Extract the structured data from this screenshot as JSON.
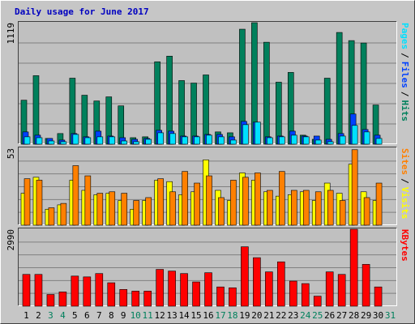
{
  "chart_data": [
    {
      "type": "bar",
      "title": "Daily usage for June 2017",
      "title_color": "#0000c0",
      "ylim": [
        0,
        1119
      ],
      "yticks": [
        1119
      ],
      "grid_lines": 6,
      "legend_separator": "/",
      "series": [
        {
          "name": "Hits",
          "color": "#00805c",
          "values": [
            405,
            631,
            53,
            98,
            608,
            451,
            398,
            436,
            353,
            60,
            68,
            759,
            811,
            586,
            563,
            638,
            113,
            105,
            1059,
            1119,
            939,
            571,
            661,
            83,
            45,
            608,
            1029,
            954,
            932,
            361,
            0
          ]
        },
        {
          "name": "Files",
          "color": "#0040ff",
          "values": [
            113,
            83,
            53,
            38,
            98,
            68,
            120,
            75,
            60,
            45,
            53,
            128,
            120,
            75,
            75,
            90,
            90,
            68,
            210,
            203,
            68,
            75,
            120,
            75,
            75,
            45,
            98,
            278,
            135,
            83,
            0
          ]
        },
        {
          "name": "Pages",
          "color": "#00e0ff",
          "values": [
            68,
            60,
            30,
            23,
            90,
            60,
            68,
            68,
            30,
            23,
            45,
            105,
            98,
            68,
            68,
            83,
            68,
            38,
            180,
            203,
            60,
            68,
            83,
            68,
            38,
            23,
            75,
            173,
            113,
            53,
            0
          ]
        }
      ]
    },
    {
      "type": "bar",
      "ylim": [
        0,
        53
      ],
      "yticks": [
        53
      ],
      "grid_lines": 6,
      "legend_separator": "/",
      "series": [
        {
          "name": "Visits",
          "color": "#ffff00",
          "values": [
            22,
            33,
            11,
            14,
            31,
            24,
            21,
            22,
            17,
            11,
            17,
            31,
            30,
            21,
            23,
            45,
            24,
            17,
            36,
            31,
            23,
            20,
            21,
            23,
            17,
            29,
            22,
            42,
            23,
            17,
            0
          ]
        },
        {
          "name": "Sites",
          "color": "#ff8000",
          "values": [
            32,
            31,
            12,
            15,
            41,
            34,
            22,
            23,
            22,
            17,
            19,
            32,
            23,
            37,
            29,
            34,
            19,
            31,
            33,
            36,
            24,
            37,
            24,
            24,
            23,
            24,
            17,
            52,
            19,
            29,
            0
          ]
        }
      ]
    },
    {
      "type": "bar",
      "ylim": [
        0,
        2990
      ],
      "yticks": [
        2990
      ],
      "grid_lines": 6,
      "series": [
        {
          "name": "KBytes",
          "color": "#ff0000",
          "values": [
            1235,
            1235,
            455,
            553,
            1170,
            1138,
            1268,
            910,
            650,
            585,
            585,
            1430,
            1365,
            1268,
            943,
            1300,
            748,
            715,
            2308,
            1885,
            1333,
            1723,
            975,
            878,
            390,
            1333,
            1235,
            2990,
            1625,
            748,
            0
          ]
        }
      ],
      "categories": [
        "1",
        "2",
        "3",
        "4",
        "5",
        "6",
        "7",
        "8",
        "9",
        "10",
        "11",
        "12",
        "13",
        "14",
        "15",
        "16",
        "17",
        "18",
        "19",
        "20",
        "21",
        "22",
        "23",
        "24",
        "25",
        "26",
        "27",
        "28",
        "29",
        "30",
        "31"
      ],
      "category_colors": [
        "#000000",
        "#000000",
        "#00805c",
        "#00805c",
        "#000000",
        "#000000",
        "#000000",
        "#000000",
        "#000000",
        "#00805c",
        "#00805c",
        "#000000",
        "#000000",
        "#000000",
        "#000000",
        "#000000",
        "#00805c",
        "#00805c",
        "#000000",
        "#000000",
        "#000000",
        "#000000",
        "#000000",
        "#00805c",
        "#00805c",
        "#000000",
        "#000000",
        "#000000",
        "#000000",
        "#000000",
        "#00805c"
      ]
    }
  ]
}
